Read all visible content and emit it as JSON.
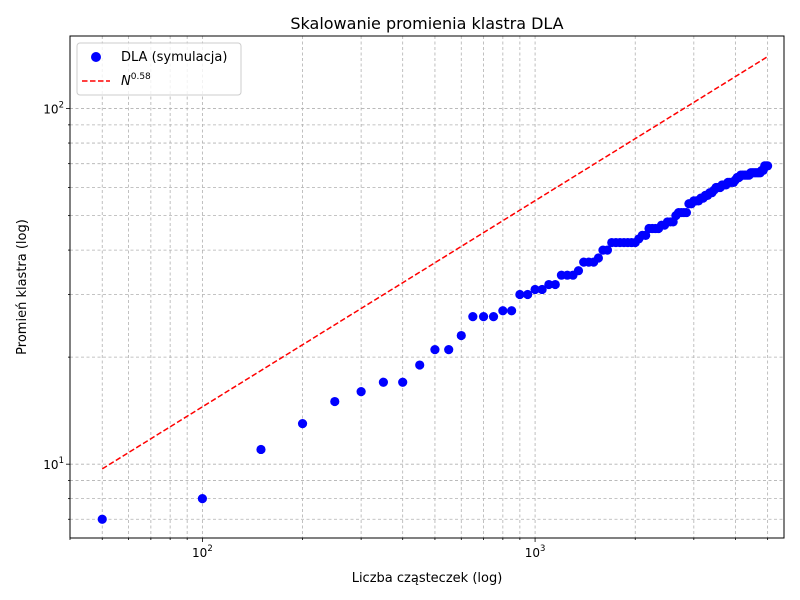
{
  "chart_data": {
    "type": "scatter",
    "title": "Skalowanie promienia klastra DLA",
    "xlabel": "Liczba cząsteczek (log)",
    "ylabel": "Promień klastra (log)",
    "xscale": "log",
    "yscale": "log",
    "xlim": [
      40,
      5600
    ],
    "ylim": [
      6.2,
      160
    ],
    "grid": true,
    "legend_position": "top-left",
    "x_ticks": [
      {
        "value": 100,
        "base": "10",
        "exp": "2"
      },
      {
        "value": 1000,
        "base": "10",
        "exp": "3"
      }
    ],
    "y_ticks": [
      {
        "value": 10,
        "base": "10",
        "exp": "1"
      },
      {
        "value": 100,
        "base": "10",
        "exp": "2"
      }
    ],
    "series": [
      {
        "name": "DLA (symulacja)",
        "kind": "scatter",
        "color": "#0000ff",
        "x": [
          50,
          100,
          150,
          200,
          250,
          300,
          350,
          400,
          450,
          500,
          550,
          600,
          650,
          700,
          750,
          800,
          850,
          900,
          950,
          1000,
          1050,
          1100,
          1150,
          1200,
          1250,
          1300,
          1350,
          1400,
          1450,
          1500,
          1550,
          1600,
          1650,
          1700,
          1750,
          1800,
          1850,
          1900,
          1950,
          2000,
          2050,
          2100,
          2150,
          2200,
          2250,
          2300,
          2350,
          2400,
          2450,
          2500,
          2550,
          2600,
          2650,
          2700,
          2750,
          2800,
          2850,
          2900,
          2950,
          3000,
          3050,
          3100,
          3150,
          3200,
          3250,
          3300,
          3350,
          3400,
          3450,
          3500,
          3550,
          3600,
          3650,
          3700,
          3750,
          3800,
          3850,
          3900,
          3950,
          4000,
          4050,
          4100,
          4150,
          4200,
          4250,
          4300,
          4350,
          4400,
          4450,
          4500,
          4550,
          4600,
          4650,
          4700,
          4750,
          4800,
          4850,
          4900,
          4950,
          5000
        ],
        "y": [
          7,
          8,
          11,
          13,
          15,
          16,
          17,
          17,
          19,
          21,
          21,
          23,
          26,
          26,
          26,
          27,
          27,
          30,
          30,
          31,
          31,
          32,
          32,
          34,
          34,
          34,
          35,
          37,
          37,
          37,
          38,
          40,
          40,
          42,
          42,
          42,
          42,
          42,
          42,
          42,
          43,
          44,
          44,
          46,
          46,
          46,
          46,
          47,
          47,
          48,
          48,
          48,
          50,
          51,
          51,
          51,
          51,
          54,
          54,
          55,
          55,
          55,
          56,
          56,
          57,
          57,
          58,
          58,
          59,
          60,
          60,
          60,
          61,
          61,
          61,
          62,
          62,
          62,
          62,
          63,
          64,
          64,
          65,
          65,
          65,
          65,
          65,
          65,
          66,
          66,
          66,
          66,
          66,
          66,
          66,
          67,
          67,
          69,
          69,
          69
        ]
      },
      {
        "name": "N^0.58",
        "label_base": "N",
        "label_exp": "0.58",
        "kind": "line",
        "style": "dashed",
        "color": "#ff0000",
        "exponent": 0.58,
        "x": [
          50,
          5000
        ],
        "y": [
          9.7,
          140
        ]
      }
    ]
  }
}
